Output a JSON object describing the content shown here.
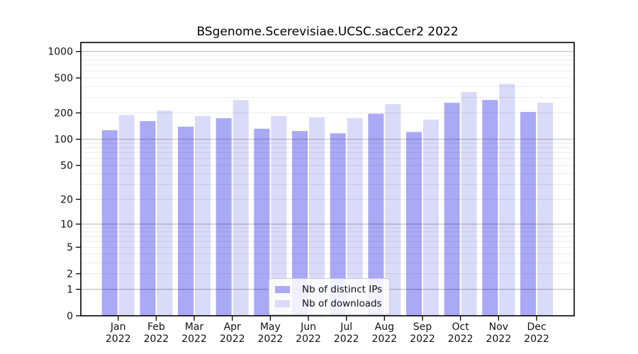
{
  "chart_data": {
    "type": "bar",
    "title": "BSgenome.Scerevisiae.UCSC.sacCer2 2022",
    "categories": [
      "Jan",
      "Feb",
      "Mar",
      "Apr",
      "May",
      "Jun",
      "Jul",
      "Aug",
      "Sep",
      "Oct",
      "Nov",
      "Dec"
    ],
    "year_label": "2022",
    "series": [
      {
        "name": "Nb of distinct IPs",
        "color": "#a9a9f6",
        "values": [
          127,
          161,
          139,
          174,
          132,
          124,
          117,
          196,
          121,
          261,
          281,
          205
        ]
      },
      {
        "name": "Nb of downloads",
        "color": "#dadaf9",
        "values": [
          189,
          212,
          185,
          281,
          184,
          178,
          175,
          252,
          168,
          345,
          428,
          262
        ]
      }
    ],
    "y_axis": {
      "scale": "log10(1+y)",
      "ticks": [
        0,
        1,
        2,
        5,
        10,
        20,
        50,
        100,
        200,
        500,
        1000
      ],
      "range_top": 1270
    },
    "grid": {
      "major": [
        1,
        10,
        100,
        1000
      ],
      "minor": [
        2,
        3,
        4,
        5,
        6,
        7,
        8,
        9,
        20,
        30,
        40,
        50,
        60,
        70,
        80,
        90,
        200,
        300,
        400,
        500,
        600,
        700,
        800,
        900
      ],
      "major_color": "rgba(0,0,0,0.25)",
      "minor_color": "rgba(0,0,0,0.08)"
    },
    "legend_position": "bottom-center",
    "background": "#ffffff",
    "spine_color": "#000000"
  }
}
